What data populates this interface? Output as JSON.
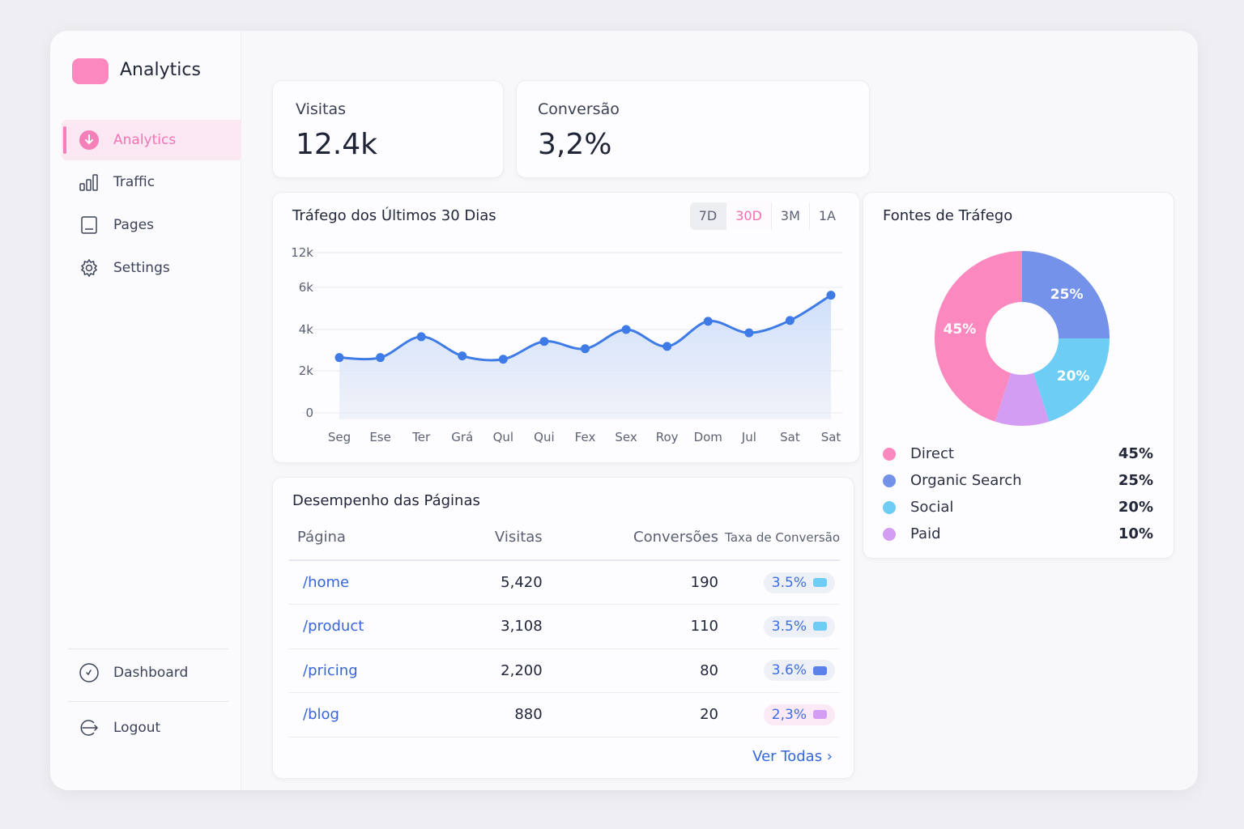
{
  "sidebar": {
    "brand": "Analytics",
    "brand_color": "#fb88be",
    "items": [
      {
        "label": "Analytics",
        "icon": "download-circle-icon",
        "active": true
      },
      {
        "label": "Traffic",
        "icon": "bar-chart-icon"
      },
      {
        "label": "Pages",
        "icon": "page-icon"
      },
      {
        "label": "Settings",
        "icon": "gear-icon"
      }
    ],
    "bottom": [
      {
        "label": "Dashboard",
        "icon": "check-circle-icon"
      },
      {
        "label": "Logout",
        "icon": "logout-icon"
      }
    ]
  },
  "stats": [
    {
      "label": "Visitas",
      "value": "12.4k"
    },
    {
      "label": "Conversão",
      "value": "3,2%"
    }
  ],
  "traffic": {
    "title": "Tráfego dos Últimos 30 Dias",
    "ranges": [
      "7D",
      "30D",
      "3M",
      "1A"
    ],
    "selected_range": "30D",
    "accent": "#f06fb0"
  },
  "chart_data": [
    {
      "type": "area",
      "title": "Tráfego dos Últimos 30 Dias",
      "categories": [
        "Seg",
        "Ese",
        "Ter",
        "Grá",
        "Qul",
        "Qui",
        "Fex",
        "Sex",
        "Roy",
        "Dom",
        "Jul",
        "Sat",
        "Sat"
      ],
      "values": [
        2640,
        2640,
        3650,
        2720,
        2560,
        3420,
        3070,
        4000,
        3180,
        4390,
        3840,
        4430,
        5630
      ],
      "y_ticks": [
        "0",
        "2k",
        "4k",
        "6k",
        "12k"
      ],
      "y_tick_values": [
        0,
        2000,
        4000,
        6000,
        12000
      ],
      "grid": true,
      "color": "#3f7be6"
    },
    {
      "type": "pie",
      "title": "Fontes de Tráfego",
      "donut": true,
      "slices": [
        {
          "name": "Direct",
          "value": 45,
          "label": "45%",
          "color": "#fb88be"
        },
        {
          "name": "Organic Search",
          "value": 25,
          "label": "25%",
          "color": "#7592ea"
        },
        {
          "name": "Social",
          "value": 20,
          "label": "20%",
          "color": "#6dcdf5"
        },
        {
          "name": "Paid",
          "value": 10,
          "label": "10%",
          "color": "#d29df2"
        }
      ],
      "legend": "bottom"
    }
  ],
  "sources": {
    "title": "Fontes de Tráfego"
  },
  "pages": {
    "title": "Desempenho das Páginas",
    "headers": [
      "Página",
      "Visitas",
      "Conversões",
      "Taxa de Conversão"
    ],
    "rows": [
      {
        "page": "/home",
        "visits": "5,420",
        "conversions": "190",
        "rate": "3.5%",
        "color": "#6dcdf5",
        "bg": "#edf0f6"
      },
      {
        "page": "/product",
        "visits": "3,108",
        "conversions": "110",
        "rate": "3.5%",
        "color": "#6dcdf5",
        "bg": "#edf0f6"
      },
      {
        "page": "/pricing",
        "visits": "2,200",
        "conversions": "80",
        "rate": "3.6%",
        "color": "#5b82e6",
        "bg": "#edf0f6"
      },
      {
        "page": "/blog",
        "visits": "880",
        "conversions": "20",
        "rate": "2,3%",
        "color": "#d29df2",
        "bg": "#fbe9f5"
      }
    ],
    "more": "Ver Todas ›"
  }
}
